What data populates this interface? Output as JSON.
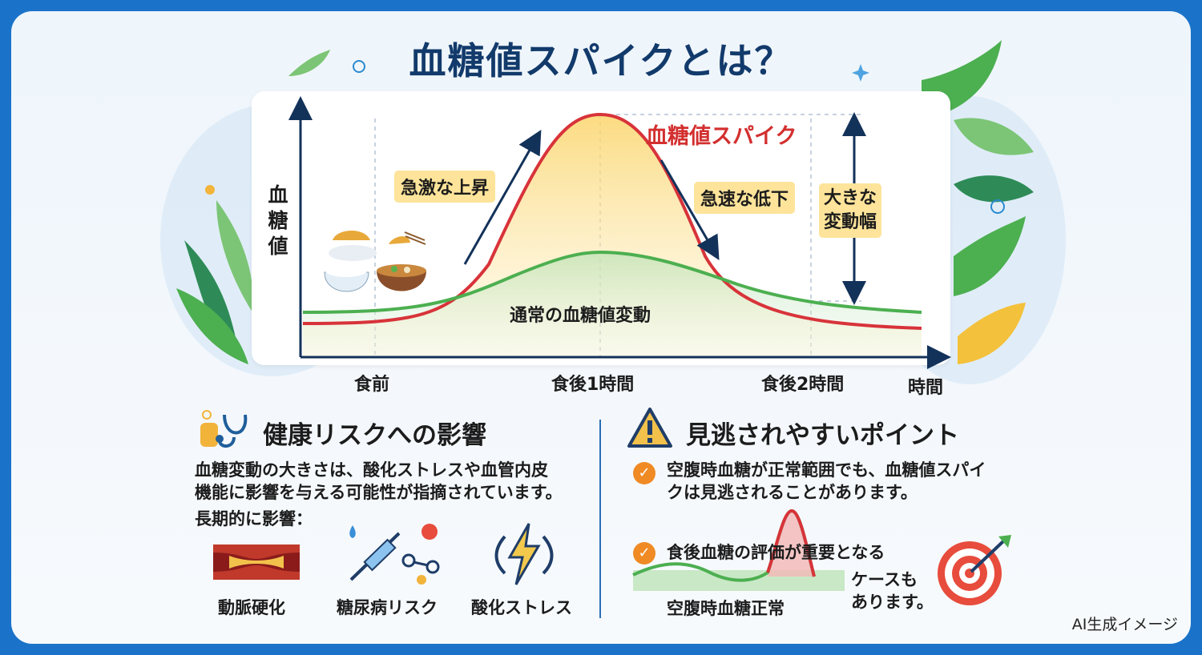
{
  "title": "血糖値スパイクとは？",
  "chart_data": {
    "type": "line",
    "ylabel": "血糖値",
    "xlabel": "時間",
    "x_ticks": [
      "食前",
      "食後1時間",
      "食後2時間"
    ],
    "series": [
      {
        "name": "血糖値スパイク",
        "color": "#d8333a"
      },
      {
        "name": "通常の血糖値変動",
        "color": "#4caf50"
      }
    ],
    "annotations": {
      "rise": "急激な上昇",
      "fall": "急速な低下",
      "amplitude": "大きな変動幅",
      "amplitude_line1": "大きな",
      "amplitude_line2": "変動幅"
    }
  },
  "ylabel_chars": [
    "血",
    "糖",
    "値"
  ],
  "left": {
    "heading": "健康リスクへの影響",
    "body_line1": "血糖変動の大きさは、酸化ストレスや血管内皮",
    "body_line2": "機能に影響を与える可能性が指摘されています。",
    "long_term": "長期的に影響：",
    "items": [
      {
        "label": "動脈硬化",
        "icon": "artery-icon"
      },
      {
        "label": "糖尿病リスク",
        "icon": "syringe-molecule-icon"
      },
      {
        "label": "酸化ストレス",
        "icon": "lightning-icon"
      }
    ]
  },
  "right": {
    "heading": "見逃されやすいポイント",
    "point1_line1": "空腹時血糖が正常範囲でも、血糖値スパイ",
    "point1_line2": "クは見逃されることがあります。",
    "point2": "食後血糖の評価が重要となる",
    "case_line1": "ケースも",
    "case_line2": "あります。",
    "fasting_normal": "空腹時血糖正常",
    "check_mark": "✓"
  },
  "credit": "AI生成イメージ"
}
